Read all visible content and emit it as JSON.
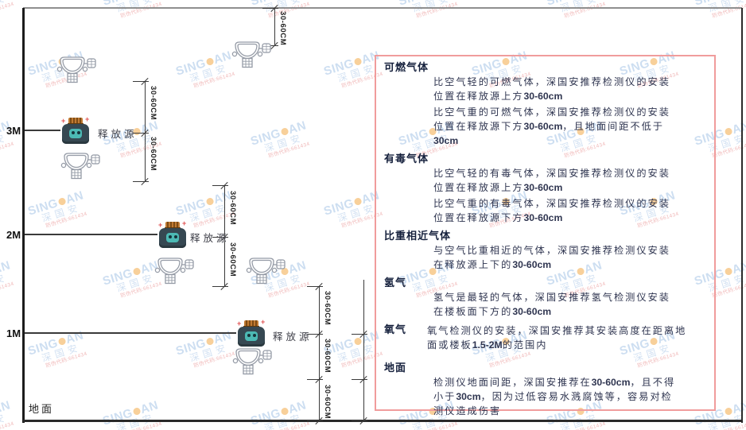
{
  "watermark": {
    "brand_left": "SING",
    "brand_right": "AN",
    "brand_cjk": "深国安",
    "code": "防伪代码:661434"
  },
  "diagram": {
    "height_labels": [
      "3M",
      "2M",
      "1M"
    ],
    "ground_label": "地面",
    "release_source_label": "释放源",
    "dimension_label": "30-60CM"
  },
  "panel": {
    "border_color": "#f09c9c",
    "sections": [
      {
        "title": "可燃气体",
        "p1": "比空气轻的可燃气体，深国安推荐检测仪的安装位置在释放源上方30-60cm",
        "p2": "比空气重的可燃气体，深国安推荐检测仪的安装位置在释放源下方30-60cm，且地面间距不低于30cm"
      },
      {
        "title": "有毒气体",
        "p1": "比空气轻的有毒气体，深国安推荐检测仪的安装位置在释放源上方30-60cm",
        "p2": "比空气重的有毒气体，深国安推荐检测仪的安装位置在释放源下方30-60cm"
      },
      {
        "title": "比重相近气体",
        "p1": "与空气比重相近的气体，深国安推荐检测仪安装在释放源上下的30-60cm"
      },
      {
        "title": "氢气",
        "p1": "氢气是最轻的气体，深国安推荐氢气检测仪安装在楼板面下方的30-60cm"
      },
      {
        "title": "氧气",
        "p1": "氧气检测仪的安装，深国安推荐其安装高度在距离地面或楼板1.5-2M的范围内"
      },
      {
        "title": "地面",
        "p1": "检测仪地面间距，深国安推荐在30-60cm，且不得小于30cm，因为过低容易水溅腐蚀等，容易对检测仪造成伤害"
      }
    ]
  },
  "colors": {
    "watermark_blue": "#9cbfe4",
    "watermark_orange": "#f2a237",
    "watermark_red": "#e27070",
    "panel_border": "#f09c9c",
    "source_body": "#364852",
    "source_cap": "#c07a32",
    "source_face": "#4cb9b4"
  }
}
